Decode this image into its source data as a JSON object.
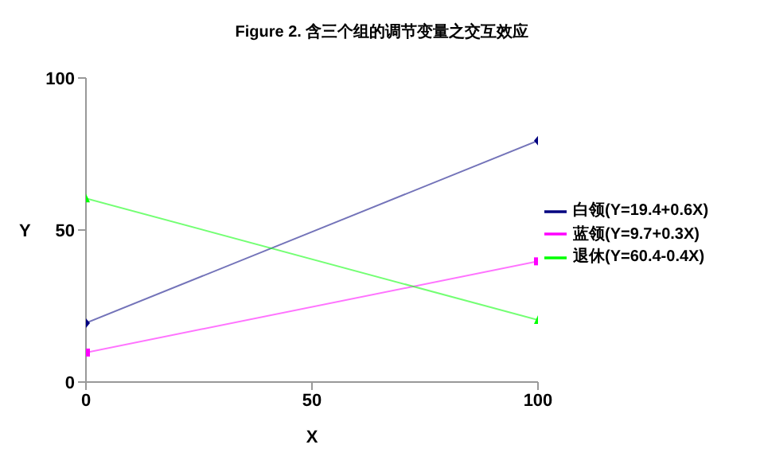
{
  "chart_data": {
    "type": "line",
    "title": "Figure 2. 含三个组的调节变量之交互效应",
    "xlabel": "X",
    "ylabel": "Y",
    "x": [
      0,
      100
    ],
    "xlim": [
      0,
      100
    ],
    "xticks": [
      0,
      50,
      100
    ],
    "ylim": [
      0,
      100
    ],
    "yticks": [
      0,
      50,
      100
    ],
    "grid": false,
    "legend": "right",
    "line_style": "solid",
    "series": [
      {
        "name": "白领(Y=19.4+0.6X)",
        "color": "#000080",
        "marker": "diamond",
        "values": [
          19.4,
          79.4
        ]
      },
      {
        "name": "蓝领(Y=9.7+0.3X)",
        "color": "#ff00ff",
        "marker": "square",
        "values": [
          9.7,
          39.7
        ]
      },
      {
        "name": "退休(Y=60.4-0.4X)",
        "color": "#00ff00",
        "marker": "triangle",
        "values": [
          60.4,
          20.4
        ]
      }
    ]
  }
}
